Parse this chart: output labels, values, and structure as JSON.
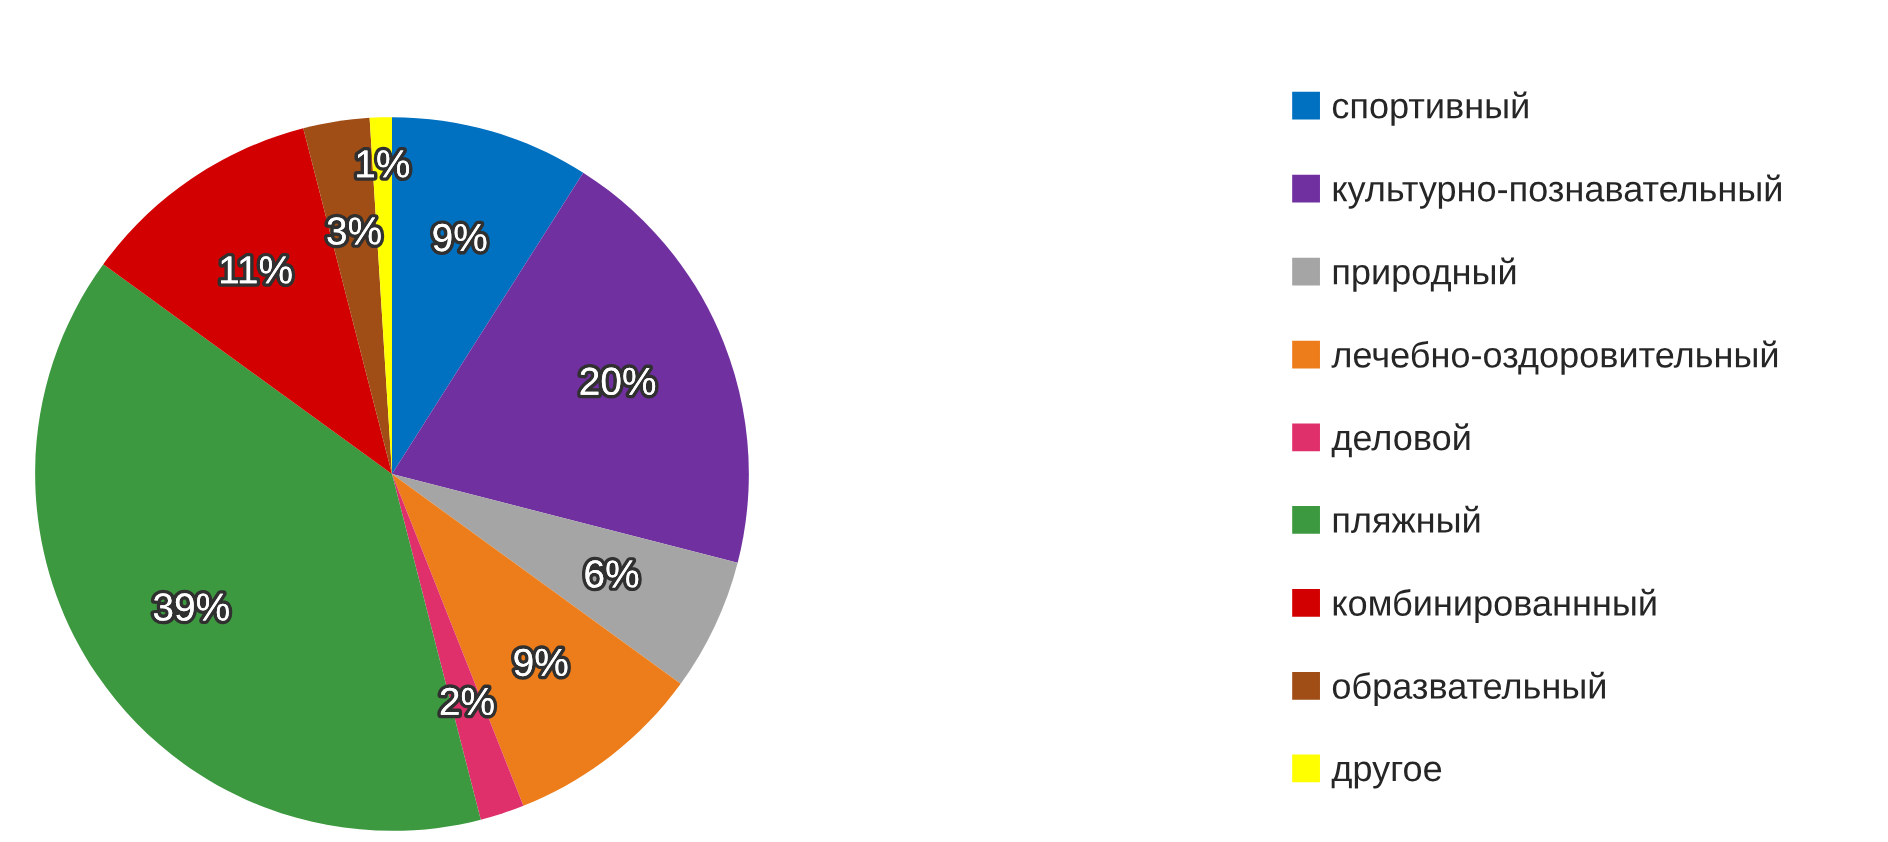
{
  "chart_data": {
    "type": "pie",
    "categories": [
      "спортивный",
      "культурно-познавательный",
      "природный",
      "лечебно-оздоровительный",
      "деловой",
      "пляжный",
      "комбинированнный",
      "образвательный",
      "другое"
    ],
    "values": [
      9,
      20,
      6,
      9,
      2,
      39,
      11,
      3,
      1
    ],
    "value_labels": [
      "9%",
      "20%",
      "6%",
      "9%",
      "2%",
      "39%",
      "11%",
      "3%",
      "1%"
    ],
    "colors": [
      "#0070c0",
      "#7030a0",
      "#a5a5a5",
      "#ed7d1a",
      "#e0306c",
      "#3d9940",
      "#d20000",
      "#a04d16",
      "#ffff00"
    ],
    "legend": "right"
  }
}
